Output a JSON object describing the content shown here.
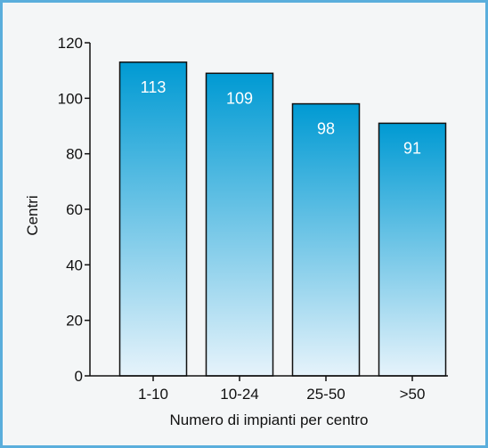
{
  "chart_data": {
    "type": "bar",
    "categories": [
      "1-10",
      "10-24",
      "25-50",
      ">50"
    ],
    "values": [
      113,
      109,
      98,
      91
    ],
    "data_labels": [
      "113",
      "109",
      "98",
      "91"
    ],
    "xlabel": "Numero di impianti per centro",
    "ylabel": "Centri",
    "ylim": [
      0,
      120
    ],
    "yticks": [
      0,
      20,
      40,
      60,
      80,
      100,
      120
    ],
    "grid": false,
    "legend": "none",
    "bar_gradient": [
      "#009ad3",
      "#e6f3fb"
    ],
    "frame_color": "#5aaedc"
  }
}
